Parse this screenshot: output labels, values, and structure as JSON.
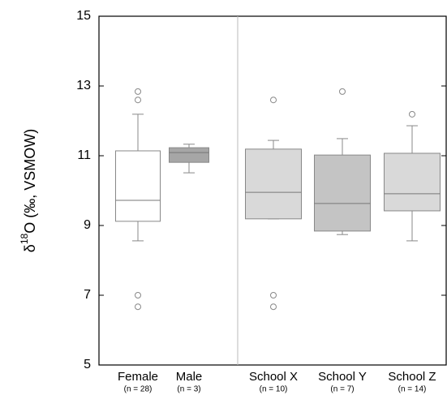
{
  "chart_data": {
    "type": "box",
    "y_label_parts": [
      "δ",
      "18",
      "O (‰, VSMOW)"
    ],
    "ylim": [
      5,
      15
    ],
    "yticks": [
      5,
      7,
      9,
      11,
      13,
      15
    ],
    "boxes": [
      {
        "category": "Female",
        "n_label": "(n = 28)",
        "color": "#ffffff",
        "whisker_low": 8.56,
        "q1": 9.12,
        "median": 9.72,
        "q3": 11.14,
        "whisker_high": 12.19,
        "outliers": [
          12.84,
          12.6,
          7.0,
          6.67
        ]
      },
      {
        "category": "Male",
        "n_label": "(n = 3)",
        "color": "#a6a6a6",
        "whisker_low": 10.51,
        "q1": 10.81,
        "median": 11.09,
        "q3": 11.23,
        "whisker_high": 11.33,
        "outliers": []
      },
      {
        "category": "School X",
        "n_label": "(n = 10)",
        "color": "#d9d9d9",
        "whisker_low": 9.19,
        "q1": 9.19,
        "median": 9.95,
        "q3": 11.19,
        "whisker_high": 11.44,
        "outliers": [
          12.6,
          7.0,
          6.67
        ]
      },
      {
        "category": "School Y",
        "n_label": "(n = 7)",
        "color": "#c4c4c4",
        "whisker_low": 8.74,
        "q1": 8.84,
        "median": 9.63,
        "q3": 11.02,
        "whisker_high": 11.49,
        "outliers": [
          12.84
        ]
      },
      {
        "category": "School Z",
        "n_label": "(n = 14)",
        "color": "#d9d9d9",
        "whisker_low": 8.56,
        "q1": 9.42,
        "median": 9.91,
        "q3": 11.07,
        "whisker_high": 11.86,
        "outliers": [
          12.19
        ]
      }
    ]
  }
}
